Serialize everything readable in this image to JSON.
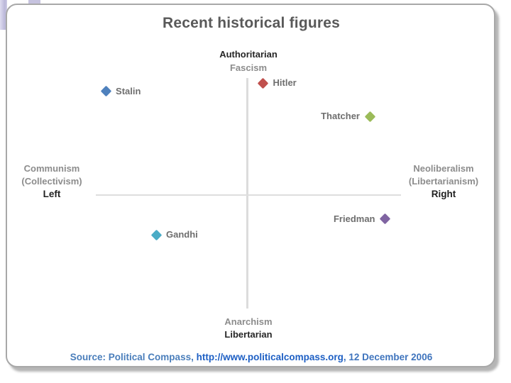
{
  "slide": {
    "title": "Recent historical figures"
  },
  "axes": {
    "top": {
      "primary": "Authoritarian",
      "secondary": "Fascism"
    },
    "bottom": {
      "primary": "Libertarian",
      "secondary": "Anarchism"
    },
    "left": {
      "line1": "Communism",
      "line2": "(Collectivism)",
      "line3": "Left"
    },
    "right": {
      "line1": "Neoliberalism",
      "line2": "(Libertarianism)",
      "line3": "Right"
    }
  },
  "source": {
    "prefix": "Source: Political Compass, ",
    "url": "http://www.politicalcompass.org",
    "suffix": ", 12 December 2006"
  },
  "chart_data": {
    "type": "scatter",
    "title": "Recent historical figures",
    "xlabel_left": "Left",
    "xlabel_right": "Right",
    "ylabel_top": "Authoritarian",
    "ylabel_bottom": "Libertarian",
    "xlim": [
      -10,
      10
    ],
    "ylim": [
      -10,
      10
    ],
    "grid": false,
    "legend": "none",
    "marker": "diamond",
    "points": [
      {
        "name": "Stalin",
        "x": -9.3,
        "y": 9.0,
        "color": "#4F81BD",
        "label_side": "right"
      },
      {
        "name": "Hitler",
        "x": 1.0,
        "y": 9.7,
        "color": "#C0504D",
        "label_side": "right"
      },
      {
        "name": "Thatcher",
        "x": 8.0,
        "y": 6.8,
        "color": "#9BBB59",
        "label_side": "left"
      },
      {
        "name": "Friedman",
        "x": 9.0,
        "y": -2.1,
        "color": "#8064A2",
        "label_side": "left"
      },
      {
        "name": "Gandhi",
        "x": -6.0,
        "y": -3.5,
        "color": "#4BACC6",
        "label_side": "right"
      }
    ]
  },
  "colors": {
    "title_text": "#595959",
    "axis_line": "#dcdcdc",
    "primary_label": "#262626",
    "secondary_label": "#8c8c8c",
    "point_label": "#6e6e6e",
    "source_text": "#4a7ebb",
    "source_url": "#1d5fc4",
    "card_border": "#a8a8a8",
    "decoration": "#c6c3df"
  }
}
